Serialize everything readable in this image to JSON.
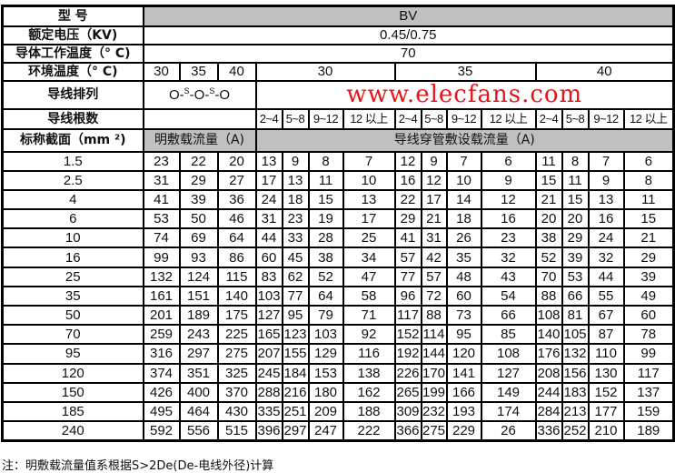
{
  "header": {
    "model_label": "型 号",
    "model_value": "BV",
    "voltage_label": "额定电压（KV)",
    "voltage_value": "0.45/0.75",
    "conductor_temp_label": "导体工作温度（° C)",
    "conductor_temp_value": "70",
    "ambient_label": "环境温度（° C)",
    "ambient_open": [
      "30",
      "35",
      "40"
    ],
    "ambient_conduit": [
      "30",
      "35",
      "40"
    ],
    "arrangement_label": "导线排列",
    "arrangement_parts": [
      "O-",
      "S",
      "-O-",
      "S",
      "-O"
    ],
    "count_label": "导线根数",
    "counts": [
      "2~4",
      "5~8",
      "9~12",
      "12 以上",
      "2~4",
      "5~8",
      "9~12",
      "12  以上",
      "2~4",
      "5~8",
      "9~12",
      "12 以上"
    ],
    "section_label": "标称截面（mm ²)",
    "open_label": "明敷载流量（A)",
    "conduit_label": "导线穿管敷设载流量（A)"
  },
  "rows": [
    [
      "1.5",
      "23",
      "22",
      "20",
      "13",
      "9",
      "8",
      "7",
      "12",
      "9",
      "7",
      "6",
      "11",
      "8",
      "7",
      "6"
    ],
    [
      "2.5",
      "31",
      "29",
      "27",
      "17",
      "13",
      "11",
      "10",
      "16",
      "12",
      "10",
      "9",
      "15",
      "11",
      "9",
      "8"
    ],
    [
      "4",
      "41",
      "39",
      "36",
      "24",
      "18",
      "15",
      "13",
      "22",
      "17",
      "14",
      "12",
      "21",
      "15",
      "13",
      "11"
    ],
    [
      "6",
      "53",
      "50",
      "46",
      "31",
      "23",
      "19",
      "17",
      "29",
      "21",
      "18",
      "16",
      "20",
      "20",
      "16",
      "15"
    ],
    [
      "10",
      "74",
      "69",
      "64",
      "44",
      "33",
      "28",
      "25",
      "41",
      "31",
      "26",
      "23",
      "38",
      "29",
      "24",
      "21"
    ],
    [
      "16",
      "99",
      "93",
      "86",
      "60",
      "45",
      "38",
      "34",
      "57",
      "42",
      "35",
      "32",
      "52",
      "39",
      "32",
      "29"
    ],
    [
      "25",
      "132",
      "124",
      "115",
      "83",
      "62",
      "52",
      "47",
      "77",
      "57",
      "48",
      "43",
      "70",
      "53",
      "44",
      "39"
    ],
    [
      "35",
      "161",
      "151",
      "140",
      "103",
      "77",
      "64",
      "58",
      "96",
      "72",
      "60",
      "54",
      "88",
      "66",
      "55",
      "49"
    ],
    [
      "50",
      "201",
      "189",
      "175",
      "127",
      "95",
      "79",
      "71",
      "117",
      "88",
      "73",
      "66",
      "108",
      "81",
      "67",
      "60"
    ],
    [
      "70",
      "259",
      "243",
      "225",
      "165",
      "123",
      "103",
      "92",
      "152",
      "114",
      "95",
      "85",
      "140",
      "105",
      "87",
      "78"
    ],
    [
      "95",
      "316",
      "297",
      "275",
      "207",
      "155",
      "129",
      "116",
      "192",
      "144",
      "120",
      "108",
      "176",
      "132",
      "110",
      "99"
    ],
    [
      "120",
      "374",
      "351",
      "325",
      "245",
      "184",
      "153",
      "138",
      "226",
      "170",
      "141",
      "127",
      "208",
      "156",
      "130",
      "117"
    ],
    [
      "150",
      "426",
      "400",
      "370",
      "288",
      "216",
      "180",
      "162",
      "265",
      "199",
      "166",
      "149",
      "244",
      "183",
      "152",
      "137"
    ],
    [
      "185",
      "495",
      "464",
      "430",
      "335",
      "251",
      "209",
      "188",
      "309",
      "232",
      "193",
      "174",
      "284",
      "213",
      "177",
      "159"
    ],
    [
      "240",
      "592",
      "556",
      "515",
      "396",
      "297",
      "247",
      "222",
      "366",
      "275",
      "229",
      "26",
      "336",
      "252",
      "210",
      "189"
    ]
  ],
  "watermark": "www.elecfans.com",
  "note": "注：明敷载流量值系根据S>2De(De-电线外径)计算",
  "colors": {
    "header_gray": "#c0c0c0",
    "watermark_red": "#e8141a"
  }
}
